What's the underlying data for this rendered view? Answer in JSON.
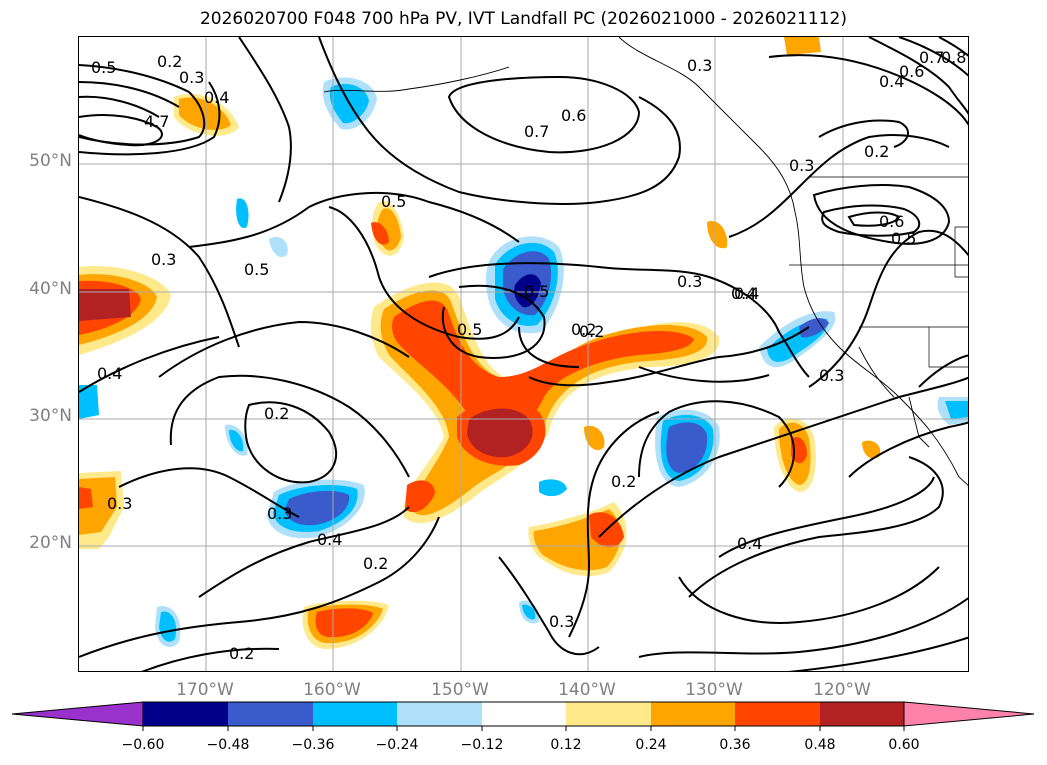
{
  "title": "2026020700 F048 700 hPa PV, IVT Landfall PC (2026021000 - 2026021112)",
  "axes": {
    "lat_labels": [
      "50°N",
      "40°N",
      "30°N",
      "20°N"
    ],
    "lon_labels": [
      "170°W",
      "160°W",
      "150°W",
      "140°W",
      "130°W",
      "120°W"
    ]
  },
  "contour_labels": [
    "0.5",
    "0.2",
    "0.3",
    "0.4",
    "4.7",
    "0.5",
    "0.4",
    "0.7",
    "0.6",
    "0.3",
    "0.8",
    "0.7",
    "0.6",
    "0.4",
    "0.5",
    "0.3",
    "0.2",
    "0.6",
    "0.5",
    "0.3",
    "0.5",
    "0.2",
    "0.3",
    "0.4",
    "0.5",
    "0.4",
    "0.3",
    "0.2",
    "0.2",
    "0.3",
    "0.4",
    "0.2",
    "0.3",
    "0.4",
    "0.2",
    "0.3",
    "0.2"
  ],
  "colorbar": {
    "ticks": [
      "−0.60",
      "−0.48",
      "−0.36",
      "−0.24",
      "−0.12",
      "0.12",
      "0.24",
      "0.36",
      "0.48",
      "0.60"
    ],
    "colors": {
      "under": "#9932cc",
      "n060": "#00008b",
      "n048": "#3a5bcc",
      "n036": "#00bfff",
      "n024": "#aee0fa",
      "zero": "#ffffff",
      "p012": "#ffe98a",
      "p024": "#ffa500",
      "p036": "#ff4500",
      "p048": "#b22222",
      "over": "#ff82ab"
    }
  },
  "colors": {
    "axis_text": "#808080",
    "contour": "#000000",
    "grid": "#aaaaaa"
  }
}
